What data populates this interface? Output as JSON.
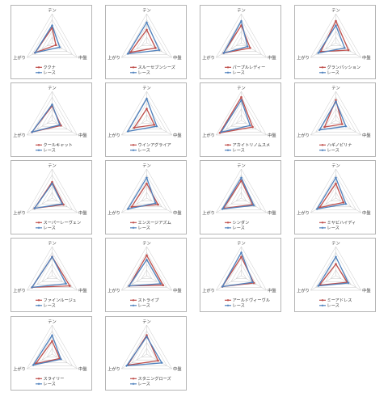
{
  "axes": [
    "テン",
    "中盤",
    "上がり"
  ],
  "colors": {
    "horse": "#c0504d",
    "race": "#4f81bd",
    "grid": "#c8c8c8"
  },
  "chart_data": [
    {
      "type": "radar",
      "axes": [
        "テン",
        "中盤",
        "上がり"
      ],
      "series": [
        {
          "name": "ククナ",
          "values": [
            5.2,
            1.5,
            6.8
          ]
        },
        {
          "name": "レース",
          "values": [
            6.0,
            3.0,
            6.8
          ]
        }
      ]
    },
    {
      "type": "radar",
      "axes": [
        "テン",
        "中盤",
        "上がり"
      ],
      "series": [
        {
          "name": "スルーセブンシーズ",
          "values": [
            4.5,
            3.5,
            6.5
          ]
        },
        {
          "name": "レース",
          "values": [
            7.0,
            5.0,
            7.5
          ]
        }
      ]
    },
    {
      "type": "radar",
      "axes": [
        "テン",
        "中盤",
        "上がり"
      ],
      "series": [
        {
          "name": "パープルレディー",
          "values": [
            6.0,
            3.5,
            7.0
          ]
        },
        {
          "name": "レース",
          "values": [
            7.5,
            2.5,
            7.0
          ]
        }
      ]
    },
    {
      "type": "radar",
      "axes": [
        "テン",
        "中盤",
        "上がり"
      ],
      "series": [
        {
          "name": "グランパッション",
          "values": [
            7.5,
            5.0,
            6.0
          ]
        },
        {
          "name": "レース",
          "values": [
            6.0,
            3.5,
            7.0
          ]
        }
      ]
    },
    {
      "type": "radar",
      "axes": [
        "テン",
        "中盤",
        "上がり"
      ],
      "series": [
        {
          "name": "クールキャット",
          "values": [
            5.0,
            3.5,
            8.0
          ]
        },
        {
          "name": "レース",
          "values": [
            5.5,
            3.0,
            8.0
          ]
        }
      ]
    },
    {
      "type": "radar",
      "axes": [
        "テン",
        "中盤",
        "上がり"
      ],
      "series": [
        {
          "name": "ウインアグライア",
          "values": [
            4.0,
            3.0,
            5.0
          ]
        },
        {
          "name": "レース",
          "values": [
            7.5,
            4.0,
            7.5
          ]
        }
      ]
    },
    {
      "type": "radar",
      "axes": [
        "テン",
        "中盤",
        "上がり"
      ],
      "series": [
        {
          "name": "アカイトリノムスメ",
          "values": [
            8.0,
            4.5,
            8.5
          ]
        },
        {
          "name": "レース",
          "values": [
            7.0,
            3.5,
            8.0
          ]
        }
      ]
    },
    {
      "type": "radar",
      "axes": [
        "テン",
        "中盤",
        "上がり"
      ],
      "series": [
        {
          "name": "ハギノピリナ",
          "values": [
            7.0,
            2.5,
            4.5
          ]
        },
        {
          "name": "レース",
          "values": [
            6.5,
            4.0,
            6.5
          ]
        }
      ]
    },
    {
      "type": "radar",
      "axes": [
        "テン",
        "中盤",
        "上がり"
      ],
      "series": [
        {
          "name": "スーパーレーヴェン",
          "values": [
            5.5,
            4.5,
            7.0
          ]
        },
        {
          "name": "レース",
          "values": [
            5.0,
            4.0,
            7.0
          ]
        }
      ]
    },
    {
      "type": "radar",
      "axes": [
        "テン",
        "中盤",
        "上がり"
      ],
      "series": [
        {
          "name": "エンスージアズム",
          "values": [
            5.0,
            4.5,
            6.0
          ]
        },
        {
          "name": "レース",
          "values": [
            7.0,
            3.5,
            7.5
          ]
        }
      ]
    },
    {
      "type": "radar",
      "axes": [
        "テン",
        "中盤",
        "上がり"
      ],
      "series": [
        {
          "name": "シンダン",
          "values": [
            6.0,
            4.5,
            7.0
          ]
        },
        {
          "name": "レース",
          "values": [
            7.0,
            5.0,
            7.5
          ]
        }
      ]
    },
    {
      "type": "radar",
      "axes": [
        "テン",
        "中盤",
        "上がり"
      ],
      "series": [
        {
          "name": "ミヤビハイディ",
          "values": [
            5.0,
            3.0,
            6.5
          ]
        },
        {
          "name": "レース",
          "values": [
            7.0,
            4.0,
            7.5
          ]
        }
      ]
    },
    {
      "type": "radar",
      "axes": [
        "テン",
        "中盤",
        "上がり"
      ],
      "series": [
        {
          "name": "ファインルージュ",
          "values": [
            6.5,
            7.0,
            8.0
          ]
        },
        {
          "name": "レース",
          "values": [
            6.5,
            5.5,
            8.0
          ]
        }
      ]
    },
    {
      "type": "radar",
      "axes": [
        "テン",
        "中盤",
        "上がり"
      ],
      "series": [
        {
          "name": "ストライプ",
          "values": [
            7.0,
            6.5,
            7.0
          ]
        },
        {
          "name": "レース",
          "values": [
            5.5,
            5.5,
            7.0
          ]
        }
      ]
    },
    {
      "type": "radar",
      "axes": [
        "テン",
        "中盤",
        "上がり"
      ],
      "series": [
        {
          "name": "アールドヴィーヴル",
          "values": [
            6.5,
            5.0,
            7.5
          ]
        },
        {
          "name": "レース",
          "values": [
            8.0,
            4.5,
            7.5
          ]
        }
      ]
    },
    {
      "type": "radar",
      "axes": [
        "テン",
        "中盤",
        "上がり"
      ],
      "series": [
        {
          "name": "ミーアドレス",
          "values": [
            4.0,
            4.5,
            6.5
          ]
        },
        {
          "name": "レース",
          "values": [
            6.5,
            5.0,
            7.0
          ]
        }
      ]
    },
    {
      "type": "radar",
      "axes": [
        "テン",
        "中盤",
        "上がり"
      ],
      "series": [
        {
          "name": "スライリー",
          "values": [
            4.5,
            3.0,
            6.5
          ]
        },
        {
          "name": "レース",
          "values": [
            6.5,
            3.5,
            7.5
          ]
        }
      ]
    },
    {
      "type": "radar",
      "axes": [
        "テン",
        "中盤",
        "上がり"
      ],
      "series": [
        {
          "name": "スタニングローズ",
          "values": [
            6.5,
            4.5,
            7.5
          ]
        },
        {
          "name": "レース",
          "values": [
            6.0,
            6.0,
            8.0
          ]
        }
      ]
    }
  ]
}
